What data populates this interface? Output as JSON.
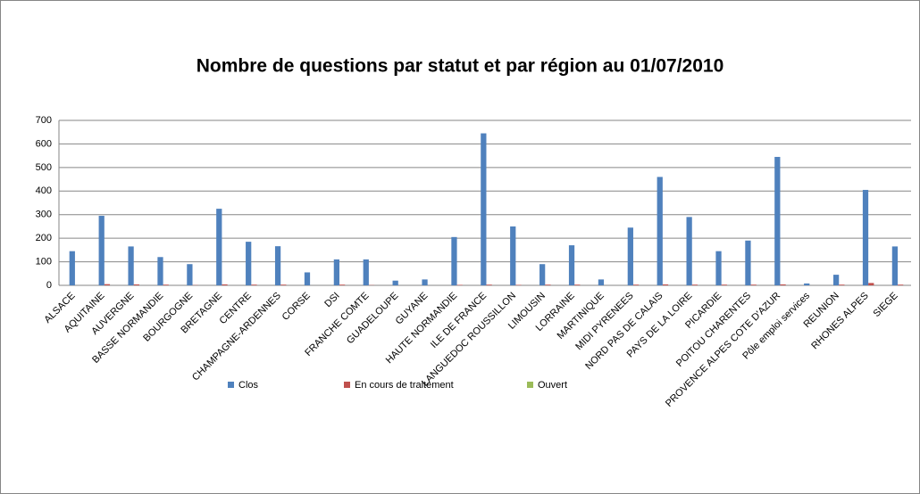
{
  "chart_data": {
    "type": "bar",
    "title": "Nombre de questions par statut et par région au 01/07/2010",
    "categories": [
      "ALSACE",
      "AQUITAINE",
      "AUVERGNE",
      "BASSE NORMANDIE",
      "BOURGOGNE",
      "BRETAGNE",
      "CENTRE",
      "CHAMPAGNE-ARDENNES",
      "CORSE",
      "DSI",
      "FRANCHE COMTE",
      "GUADELOUPE",
      "GUYANE",
      "HAUTE NORMANDIE",
      "ILE DE FRANCE",
      "LANGUEDOC ROUSSILLON",
      "LIMOUSIN",
      "LORRAINE",
      "MARTINIQUE",
      "MIDI PYRENEES",
      "NORD PAS DE CALAIS",
      "PAYS DE LA LOIRE",
      "PICARDIE",
      "POITOU CHARENTES",
      "PROVENCE ALPES COTE D'AZUR",
      "Pôle emploi services",
      "REUNION",
      "RHONES ALPES",
      "SIEGE"
    ],
    "series": [
      {
        "name": "Clos",
        "color": "#4f81bd",
        "values": [
          145,
          295,
          165,
          120,
          90,
          325,
          185,
          166,
          55,
          110,
          110,
          20,
          25,
          205,
          645,
          250,
          90,
          170,
          25,
          245,
          460,
          290,
          145,
          190,
          545,
          8,
          45,
          405,
          165
        ]
      },
      {
        "name": "En cours de traitement",
        "color": "#c0504d",
        "values": [
          0,
          5,
          4,
          3,
          1,
          4,
          3,
          3,
          0,
          3,
          1,
          0,
          0,
          2,
          3,
          2,
          3,
          3,
          0,
          3,
          4,
          3,
          3,
          3,
          4,
          0,
          3,
          10,
          3
        ]
      },
      {
        "name": "Ouvert",
        "color": "#9bbb59",
        "values": [
          0,
          0,
          0,
          0,
          0,
          0,
          0,
          0,
          0,
          0,
          0,
          0,
          0,
          0,
          0,
          0,
          0,
          0,
          0,
          0,
          0,
          0,
          0,
          0,
          0,
          0,
          0,
          0,
          0
        ]
      }
    ],
    "ylim": [
      0,
      700
    ],
    "yticks": [
      0,
      100,
      200,
      300,
      400,
      500,
      600,
      700
    ],
    "grid": true,
    "legend": "bottom"
  }
}
